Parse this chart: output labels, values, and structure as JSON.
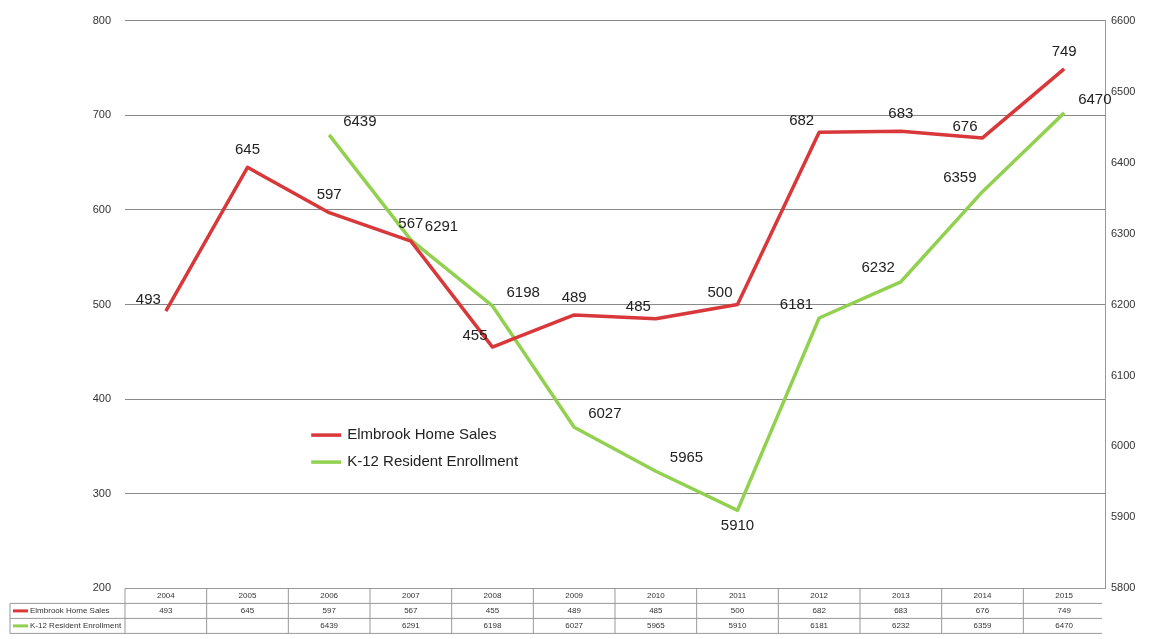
{
  "chart_data": {
    "type": "line",
    "categories": [
      "2004",
      "2005",
      "2006",
      "2007",
      "2008",
      "2009",
      "2010",
      "2011",
      "2012",
      "2013",
      "2014",
      "2015"
    ],
    "series": [
      {
        "name": "Elmbrook Home Sales",
        "color": "#d9383a",
        "values": [
          493,
          645,
          597,
          567,
          455,
          489,
          485,
          500,
          682,
          683,
          676,
          749
        ],
        "value_labels": [
          "493",
          "645",
          "597",
          "567",
          "455",
          "489",
          "485",
          "500",
          "682",
          "683",
          "676",
          "749"
        ]
      },
      {
        "name": "K-12 Resident Enrollment",
        "color": "#92d050",
        "axis": "y2",
        "values": [
          null,
          null,
          6439,
          6291,
          6198,
          6027,
          5965,
          5910,
          6181,
          6232,
          6359,
          6470
        ],
        "value_labels": [
          null,
          null,
          "6439",
          "6291",
          "6198",
          "6027",
          "5965",
          "5910",
          "6181",
          "6232",
          "6359",
          "6470"
        ]
      }
    ],
    "ylim": [
      200,
      800
    ],
    "yticks": [
      200,
      300,
      400,
      500,
      600,
      700,
      800
    ],
    "y2lim": [
      5800,
      6600
    ],
    "y2ticks": [
      5800,
      5900,
      6000,
      6100,
      6200,
      6300,
      6400,
      6500,
      6600
    ],
    "annotations": [
      "493",
      "645",
      "597",
      "567",
      "455",
      "489",
      "485",
      "500",
      "682",
      "683",
      "676",
      "749",
      "6439",
      "6291",
      "6198",
      "6027",
      "5965",
      "5910",
      "6181",
      "6232",
      "6359",
      "6470"
    ],
    "grid": "y",
    "legend": "left",
    "marker": "none",
    "line_style": "solid",
    "data_labels": true
  }
}
